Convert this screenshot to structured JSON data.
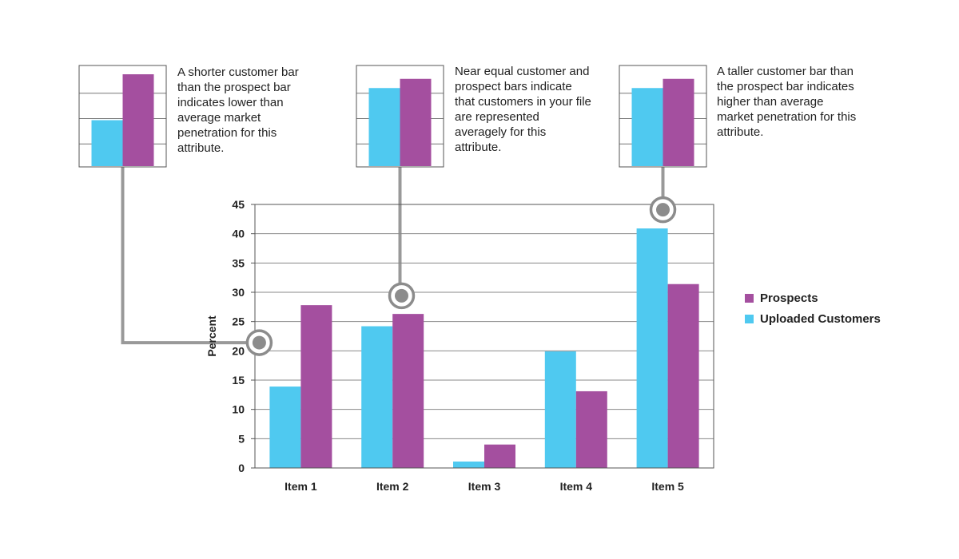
{
  "chart_data": {
    "type": "bar",
    "categories": [
      "Item 1",
      "Item 2",
      "Item 3",
      "Item 4",
      "Item 5"
    ],
    "series": [
      {
        "name": "Uploaded Customers",
        "values": [
          13.9,
          24.2,
          1.1,
          19.9,
          40.9
        ],
        "color": "#4fc9f0"
      },
      {
        "name": "Prospects",
        "values": [
          27.8,
          26.3,
          4.0,
          13.1,
          31.4
        ],
        "color": "#a44f9f"
      }
    ],
    "ylabel": "Percent",
    "xlabel": "",
    "ylim": [
      0,
      45
    ],
    "yticks": [
      0,
      5,
      10,
      15,
      20,
      25,
      30,
      35,
      40,
      45
    ],
    "grid": true,
    "legend_position": "right",
    "legend_order": [
      "Prospects",
      "Uploaded Customers"
    ]
  },
  "callouts": [
    {
      "text": "A shorter customer bar than the prospect bar indicates lower than average market penetration for this attribute.",
      "example_values": {
        "customers": 2,
        "prospects": 4
      },
      "target_category": "Item 1"
    },
    {
      "text": "Near equal customer and prospect bars indicate that customers in your file are represented averagely for this attribute.",
      "example_values": {
        "customers": 3.4,
        "prospects": 3.8
      },
      "target_category": "Item 2"
    },
    {
      "text": "A taller customer bar than the prospect bar indicates higher than average market penetration for this attribute.",
      "example_values": {
        "customers": 3.4,
        "prospects": 3.8
      },
      "target_category": "Item 5"
    }
  ],
  "colors": {
    "customers": "#4fc9f0",
    "prospects": "#a44f9f",
    "connector": "#999999",
    "marker": "#8c8c8c"
  },
  "icons": {
    "marker": "ring-dot-marker-icon"
  }
}
